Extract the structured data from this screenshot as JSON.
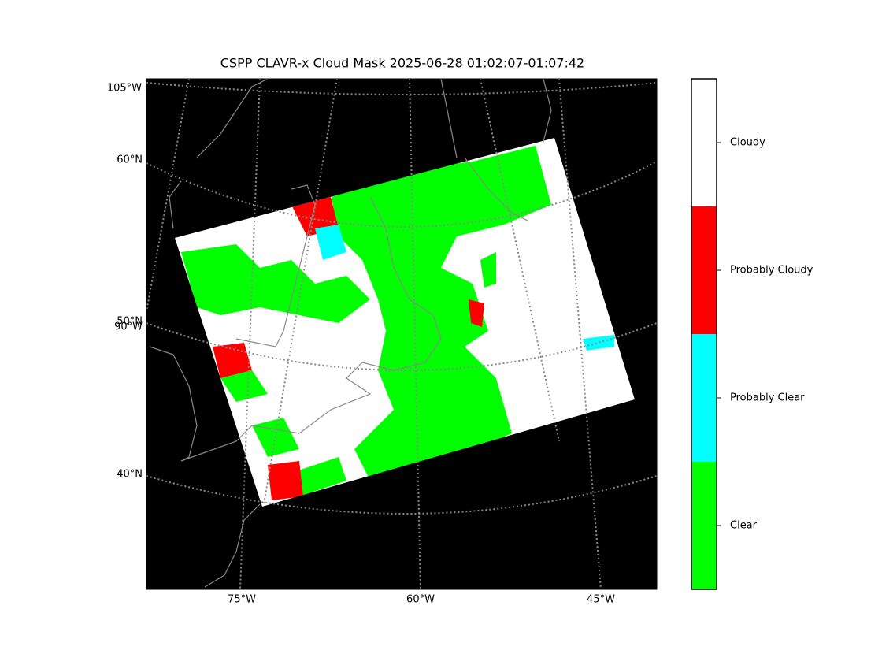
{
  "title": "CSPP CLAVR-x Cloud Mask 2025-06-28 01:02:07-01:07:42",
  "map": {
    "left_labels": [
      "105°W",
      "60°N",
      "50°N",
      "90°W",
      "40°N"
    ],
    "bottom_labels": [
      "75°W",
      "60°W",
      "45°W"
    ]
  },
  "colorbar": {
    "labels": [
      "Clear",
      "Probably Clear",
      "Probably Cloudy",
      "Cloudy"
    ],
    "colors": [
      "#00ff00",
      "#00ffff",
      "#ff0000",
      "#ffffff"
    ]
  }
}
